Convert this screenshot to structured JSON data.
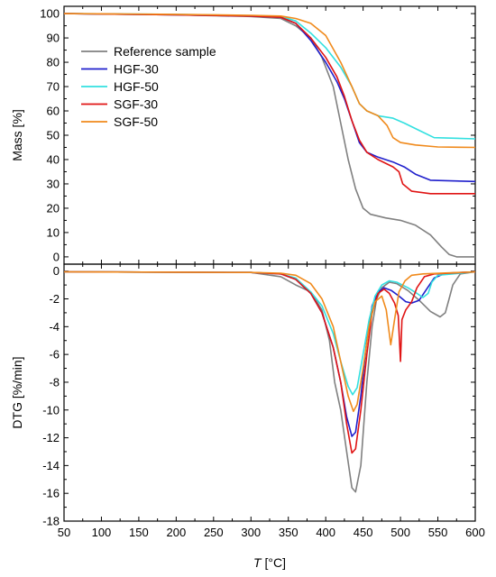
{
  "chart_data": [
    {
      "id": "mass",
      "type": "line",
      "ylabel": "Mass [%]",
      "xlim": [
        50,
        600
      ],
      "ylim": [
        -3,
        103
      ],
      "yticks": [
        0,
        10,
        20,
        30,
        40,
        50,
        60,
        70,
        80,
        90,
        100
      ],
      "ytick_labels": [
        "0",
        "10",
        "20",
        "30",
        "40",
        "50",
        "60",
        "70",
        "80",
        "90",
        "100"
      ],
      "legend_position": "upper-left",
      "series": [
        {
          "name": "Reference sample",
          "color": "#808080",
          "points": [
            [
              50,
              100
            ],
            [
              200,
              99.5
            ],
            [
              300,
              98.8
            ],
            [
              340,
              98
            ],
            [
              360,
              95
            ],
            [
              380,
              90
            ],
            [
              395,
              82
            ],
            [
              410,
              70
            ],
            [
              420,
              55
            ],
            [
              430,
              40
            ],
            [
              440,
              28
            ],
            [
              450,
              20
            ],
            [
              460,
              17.5
            ],
            [
              480,
              16
            ],
            [
              500,
              15
            ],
            [
              520,
              13
            ],
            [
              540,
              9
            ],
            [
              555,
              4
            ],
            [
              565,
              1
            ],
            [
              575,
              0
            ],
            [
              600,
              0
            ]
          ]
        },
        {
          "name": "HGF-30",
          "color": "#1f1fcc",
          "points": [
            [
              50,
              100
            ],
            [
              200,
              99.5
            ],
            [
              300,
              99
            ],
            [
              340,
              98.5
            ],
            [
              360,
              96
            ],
            [
              380,
              89
            ],
            [
              400,
              80
            ],
            [
              415,
              72
            ],
            [
              425,
              65
            ],
            [
              435,
              56
            ],
            [
              445,
              47
            ],
            [
              455,
              43
            ],
            [
              470,
              41
            ],
            [
              490,
              39
            ],
            [
              505,
              37
            ],
            [
              520,
              34
            ],
            [
              540,
              31.5
            ],
            [
              600,
              31
            ]
          ]
        },
        {
          "name": "HGF-50",
          "color": "#33e0e0",
          "points": [
            [
              50,
              100
            ],
            [
              200,
              99.7
            ],
            [
              300,
              99.2
            ],
            [
              340,
              98.8
            ],
            [
              360,
              97
            ],
            [
              380,
              92
            ],
            [
              400,
              86
            ],
            [
              420,
              78
            ],
            [
              435,
              70
            ],
            [
              445,
              63
            ],
            [
              455,
              60
            ],
            [
              470,
              58
            ],
            [
              490,
              57
            ],
            [
              505,
              55
            ],
            [
              525,
              52
            ],
            [
              545,
              49
            ],
            [
              600,
              48.5
            ]
          ]
        },
        {
          "name": "SGF-30",
          "color": "#e01414",
          "points": [
            [
              50,
              100
            ],
            [
              200,
              99.5
            ],
            [
              300,
              99
            ],
            [
              340,
              98.5
            ],
            [
              360,
              96
            ],
            [
              380,
              90
            ],
            [
              400,
              82
            ],
            [
              415,
              74
            ],
            [
              425,
              66
            ],
            [
              435,
              56
            ],
            [
              445,
              48
            ],
            [
              455,
              43
            ],
            [
              470,
              40
            ],
            [
              490,
              37
            ],
            [
              498,
              35
            ],
            [
              503,
              30
            ],
            [
              515,
              27
            ],
            [
              540,
              26
            ],
            [
              600,
              26
            ]
          ]
        },
        {
          "name": "SGF-50",
          "color": "#f08a1c",
          "points": [
            [
              50,
              100
            ],
            [
              200,
              99.7
            ],
            [
              300,
              99.3
            ],
            [
              340,
              99
            ],
            [
              360,
              98
            ],
            [
              380,
              96
            ],
            [
              400,
              91
            ],
            [
              420,
              80
            ],
            [
              435,
              70
            ],
            [
              445,
              63
            ],
            [
              455,
              60
            ],
            [
              470,
              58
            ],
            [
              482,
              54
            ],
            [
              490,
              49
            ],
            [
              500,
              47
            ],
            [
              520,
              46
            ],
            [
              550,
              45.2
            ],
            [
              600,
              45
            ]
          ]
        }
      ]
    },
    {
      "id": "dtg",
      "type": "line",
      "xlabel_italic": "T",
      "xlabel_rest": " [°C]",
      "ylabel": "DTG [%/min]",
      "xlim": [
        50,
        600
      ],
      "ylim": [
        -18,
        0.5
      ],
      "xticks": [
        50,
        100,
        150,
        200,
        250,
        300,
        350,
        400,
        450,
        500,
        550,
        600
      ],
      "xtick_labels": [
        "50",
        "100",
        "150",
        "200",
        "250",
        "300",
        "350",
        "400",
        "450",
        "500",
        "550",
        "600"
      ],
      "yticks": [
        0,
        -2,
        -4,
        -6,
        -8,
        -10,
        -12,
        -14,
        -16,
        -18
      ],
      "ytick_labels": [
        "0",
        "-2",
        "-4",
        "-6",
        "-8",
        "-10",
        "-12",
        "-14",
        "-16",
        "-18"
      ],
      "series": [
        {
          "name": "Reference sample",
          "color": "#808080",
          "points": [
            [
              50,
              -0.05
            ],
            [
              300,
              -0.1
            ],
            [
              340,
              -0.4
            ],
            [
              360,
              -1.0
            ],
            [
              380,
              -1.5
            ],
            [
              395,
              -2.8
            ],
            [
              405,
              -5
            ],
            [
              412,
              -8
            ],
            [
              420,
              -10
            ],
            [
              428,
              -13
            ],
            [
              435,
              -15.6
            ],
            [
              440,
              -15.9
            ],
            [
              447,
              -14
            ],
            [
              455,
              -8
            ],
            [
              462,
              -4
            ],
            [
              468,
              -2
            ],
            [
              475,
              -1.2
            ],
            [
              485,
              -0.8
            ],
            [
              495,
              -0.9
            ],
            [
              510,
              -1.4
            ],
            [
              525,
              -2.1
            ],
            [
              540,
              -2.9
            ],
            [
              553,
              -3.3
            ],
            [
              560,
              -3
            ],
            [
              565,
              -2
            ],
            [
              570,
              -1
            ],
            [
              580,
              -0.2
            ],
            [
              600,
              -0.05
            ]
          ]
        },
        {
          "name": "HGF-30",
          "color": "#1f1fcc",
          "points": [
            [
              50,
              -0.05
            ],
            [
              300,
              -0.1
            ],
            [
              340,
              -0.2
            ],
            [
              360,
              -0.6
            ],
            [
              380,
              -1.6
            ],
            [
              395,
              -3
            ],
            [
              410,
              -5.5
            ],
            [
              420,
              -8
            ],
            [
              428,
              -10.5
            ],
            [
              435,
              -11.9
            ],
            [
              440,
              -11.6
            ],
            [
              447,
              -9
            ],
            [
              455,
              -5
            ],
            [
              462,
              -2.5
            ],
            [
              470,
              -1.5
            ],
            [
              478,
              -1.2
            ],
            [
              488,
              -1.4
            ],
            [
              498,
              -1.8
            ],
            [
              507,
              -2.2
            ],
            [
              515,
              -2.3
            ],
            [
              525,
              -2.1
            ],
            [
              535,
              -1.3
            ],
            [
              545,
              -0.5
            ],
            [
              560,
              -0.15
            ],
            [
              600,
              -0.05
            ]
          ]
        },
        {
          "name": "HGF-50",
          "color": "#33e0e0",
          "points": [
            [
              50,
              -0.05
            ],
            [
              300,
              -0.1
            ],
            [
              340,
              -0.2
            ],
            [
              360,
              -0.5
            ],
            [
              380,
              -1.5
            ],
            [
              395,
              -2.5
            ],
            [
              410,
              -4.5
            ],
            [
              420,
              -6.5
            ],
            [
              430,
              -8.3
            ],
            [
              436,
              -8.9
            ],
            [
              442,
              -8.4
            ],
            [
              450,
              -6
            ],
            [
              458,
              -3.5
            ],
            [
              466,
              -1.8
            ],
            [
              475,
              -1
            ],
            [
              485,
              -0.7
            ],
            [
              495,
              -0.8
            ],
            [
              510,
              -1.2
            ],
            [
              522,
              -1.6
            ],
            [
              530,
              -1.9
            ],
            [
              537,
              -1.6
            ],
            [
              542,
              -0.8
            ],
            [
              550,
              -0.3
            ],
            [
              600,
              -0.05
            ]
          ]
        },
        {
          "name": "SGF-30",
          "color": "#e01414",
          "points": [
            [
              50,
              -0.05
            ],
            [
              300,
              -0.1
            ],
            [
              340,
              -0.2
            ],
            [
              360,
              -0.6
            ],
            [
              380,
              -1.6
            ],
            [
              395,
              -3
            ],
            [
              410,
              -5.5
            ],
            [
              420,
              -8
            ],
            [
              428,
              -11
            ],
            [
              435,
              -13.1
            ],
            [
              440,
              -12.8
            ],
            [
              447,
              -10
            ],
            [
              455,
              -6
            ],
            [
              462,
              -3
            ],
            [
              470,
              -1.6
            ],
            [
              478,
              -1.3
            ],
            [
              485,
              -1.6
            ],
            [
              492,
              -2.3
            ],
            [
              497,
              -3.2
            ],
            [
              500,
              -6.5
            ],
            [
              502,
              -3.5
            ],
            [
              507,
              -2.8
            ],
            [
              515,
              -2.2
            ],
            [
              522,
              -1.2
            ],
            [
              532,
              -0.4
            ],
            [
              545,
              -0.2
            ],
            [
              600,
              -0.05
            ]
          ]
        },
        {
          "name": "SGF-50",
          "color": "#f08a1c",
          "points": [
            [
              50,
              -0.05
            ],
            [
              300,
              -0.1
            ],
            [
              340,
              -0.15
            ],
            [
              360,
              -0.3
            ],
            [
              380,
              -0.9
            ],
            [
              395,
              -2
            ],
            [
              410,
              -4
            ],
            [
              422,
              -7
            ],
            [
              430,
              -9
            ],
            [
              437,
              -10.1
            ],
            [
              442,
              -9.6
            ],
            [
              450,
              -7
            ],
            [
              458,
              -4
            ],
            [
              466,
              -2.2
            ],
            [
              475,
              -1.8
            ],
            [
              481,
              -2.8
            ],
            [
              487,
              -5.3
            ],
            [
              492,
              -3.5
            ],
            [
              498,
              -1.5
            ],
            [
              506,
              -0.7
            ],
            [
              515,
              -0.3
            ],
            [
              530,
              -0.2
            ],
            [
              600,
              -0.05
            ]
          ]
        }
      ]
    }
  ]
}
